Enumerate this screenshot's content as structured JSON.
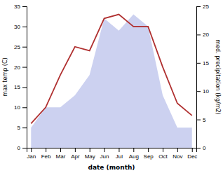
{
  "chart_data": {
    "type": "line",
    "categories": [
      "Jan",
      "Feb",
      "Mar",
      "Apr",
      "May",
      "Jun",
      "Jul",
      "Aug",
      "Sep",
      "Oct",
      "Nov",
      "Dec"
    ],
    "x_label": "date (month)",
    "y_label": "max temp (C)",
    "y2_label": "med. precipitation (kg/m2)",
    "series": [
      {
        "type": "area",
        "color": "#b0b8e8",
        "values": [
          5,
          10,
          10,
          13,
          18,
          32,
          29,
          33,
          30,
          13,
          5,
          5
        ]
      },
      {
        "type": "line",
        "color": "#b03030",
        "values": [
          6,
          10,
          18,
          25,
          24,
          32,
          33,
          30,
          30,
          20,
          11,
          8
        ]
      }
    ],
    "ylim": [
      0,
      35
    ],
    "yticks": [
      0,
      5,
      10,
      15,
      20,
      25,
      30,
      35
    ],
    "y2lim": [
      0,
      25
    ],
    "y2ticks": [
      0,
      5,
      10,
      15,
      20,
      25
    ]
  }
}
